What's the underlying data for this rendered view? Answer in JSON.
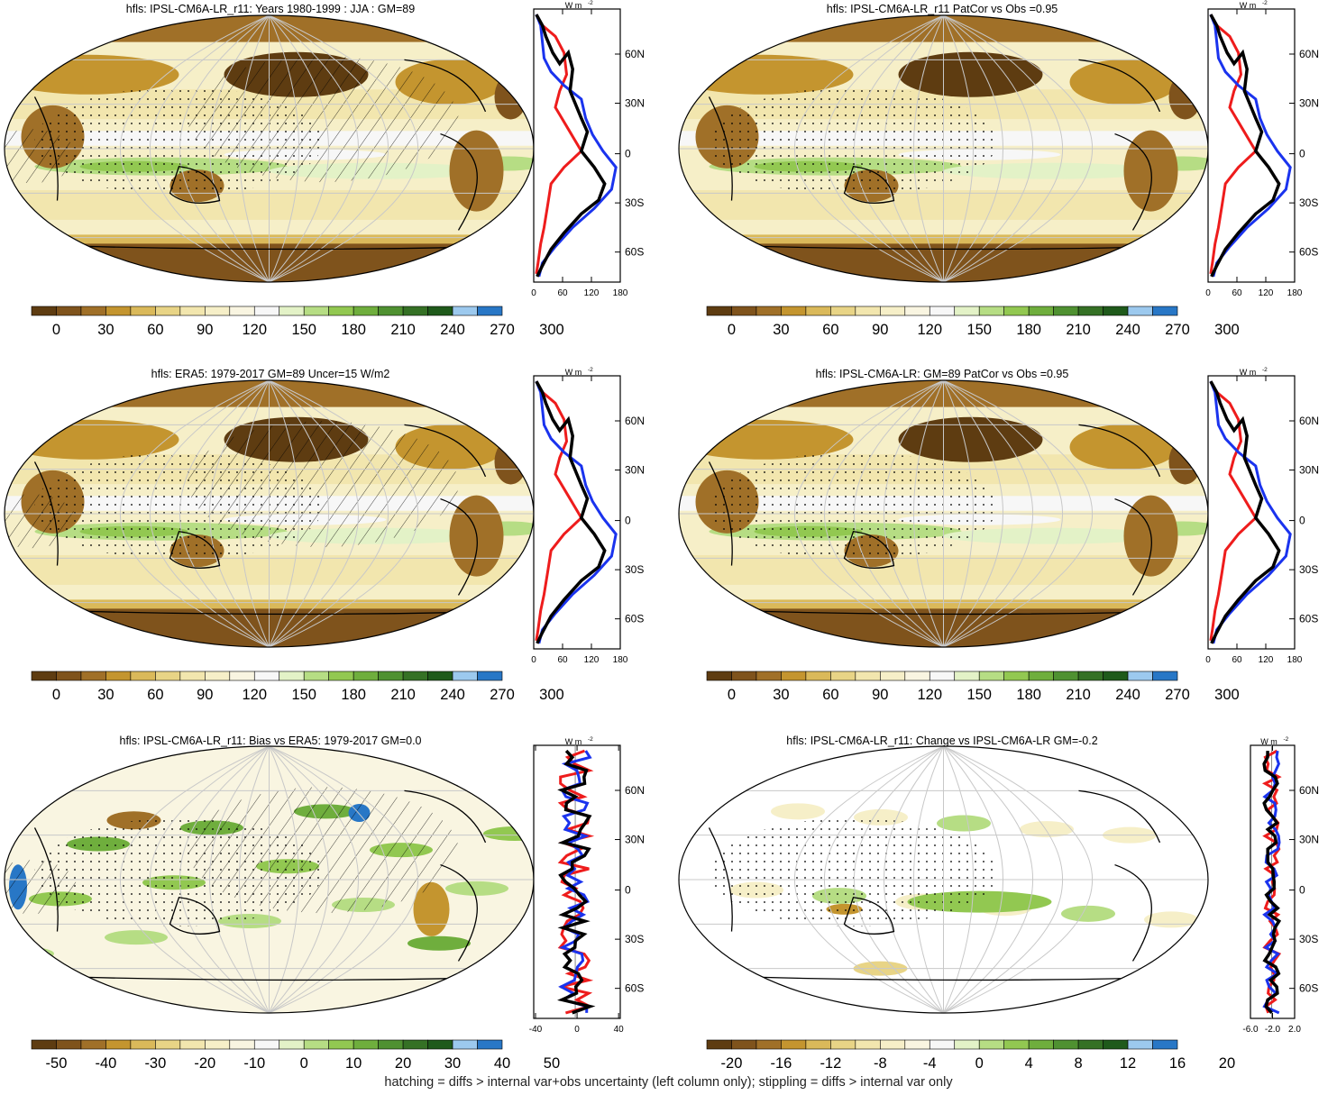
{
  "colors": {
    "abs_scale": [
      "#5e3c11",
      "#7f531c",
      "#a07028",
      "#c4952f",
      "#dab95a",
      "#e8d486",
      "#f2e6ae",
      "#f6efc8",
      "#f9f5e1",
      "#f7f7f7",
      "#e3f2c7",
      "#b6dd84",
      "#92c851",
      "#6fae3d",
      "#4f9131",
      "#357125",
      "#1f5a1b",
      "#9cc9ee",
      "#2877c6"
    ],
    "diff_scale": [
      "#5e3c11",
      "#7f531c",
      "#a07028",
      "#c4952f",
      "#dab95a",
      "#e8d486",
      "#f2e6ae",
      "#f6efc8",
      "#f9f5e1",
      "#f7f7f7",
      "#e3f2c7",
      "#b6dd84",
      "#92c851",
      "#6fae3d",
      "#4f9131",
      "#357125",
      "#1f5a1b",
      "#9cc9ee",
      "#2877c6"
    ],
    "line_model": "#000000",
    "line_red": "#ee1c1c",
    "line_blue": "#1a33ee"
  },
  "footer": "hatching = diffs > internal var+obs uncertainty (left column only); stippling = diffs > internal var only",
  "panels": [
    {
      "title": "hfls: IPSL-CM6A-LR_r11: Years 1980-1999 : JJA : GM=89",
      "colorbar_labels": [
        "0",
        "30",
        "60",
        "90",
        "120",
        "150",
        "180",
        "210",
        "240",
        "270",
        "300"
      ],
      "profile": {
        "unit": "W m",
        "unit_exp": "-2",
        "xticks": [
          "0",
          "60",
          "120",
          "180"
        ],
        "yticks": [
          "60N",
          "30N",
          "0",
          "30S",
          "60S"
        ]
      }
    },
    {
      "title": "hfls: IPSL-CM6A-LR_r11 PatCor vs Obs =0.95",
      "colorbar_labels": [
        "0",
        "30",
        "60",
        "90",
        "120",
        "150",
        "180",
        "210",
        "240",
        "270",
        "300"
      ],
      "profile": {
        "unit": "W m",
        "unit_exp": "-2",
        "xticks": [
          "0",
          "60",
          "120",
          "180"
        ],
        "yticks": [
          "60N",
          "30N",
          "0",
          "30S",
          "60S"
        ]
      }
    },
    {
      "title": "hfls: ERA5: 1979-2017 GM=89 Uncer=15 W/m2",
      "colorbar_labels": [
        "0",
        "30",
        "60",
        "90",
        "120",
        "150",
        "180",
        "210",
        "240",
        "270",
        "300"
      ],
      "profile": {
        "unit": "W m",
        "unit_exp": "-2",
        "xticks": [
          "0",
          "60",
          "120",
          "180"
        ],
        "yticks": [
          "60N",
          "30N",
          "0",
          "30S",
          "60S"
        ]
      }
    },
    {
      "title": "hfls: IPSL-CM6A-LR: GM=89 PatCor vs Obs =0.95",
      "colorbar_labels": [
        "0",
        "30",
        "60",
        "90",
        "120",
        "150",
        "180",
        "210",
        "240",
        "270",
        "300"
      ],
      "profile": {
        "unit": "W m",
        "unit_exp": "-2",
        "xticks": [
          "0",
          "60",
          "120",
          "180"
        ],
        "yticks": [
          "60N",
          "30N",
          "0",
          "30S",
          "60S"
        ]
      }
    },
    {
      "title": "hfls: IPSL-CM6A-LR_r11: Bias vs ERA5: 1979-2017 GM=0.0",
      "colorbar_labels": [
        "-50",
        "-40",
        "-30",
        "-20",
        "-10",
        "0",
        "10",
        "20",
        "30",
        "40",
        "50"
      ],
      "profile": {
        "unit": "W m",
        "unit_exp": "-2",
        "xticks": [
          "-40",
          "0",
          "40"
        ],
        "yticks": [
          "60N",
          "30N",
          "0",
          "30S",
          "60S"
        ]
      }
    },
    {
      "title": "hfls: IPSL-CM6A-LR_r11: Change vs IPSL-CM6A-LR GM=-0.2",
      "colorbar_labels": [
        "-20",
        "-16",
        "-12",
        "-8",
        "-4",
        "0",
        "4",
        "8",
        "12",
        "16",
        "20"
      ],
      "profile": {
        "unit": "W m",
        "unit_exp": "-2",
        "xticks": [
          "-6.0",
          "-2.0",
          "2.0"
        ],
        "yticks": [
          "60N",
          "30N",
          "0",
          "30S",
          "60S"
        ]
      }
    }
  ]
}
